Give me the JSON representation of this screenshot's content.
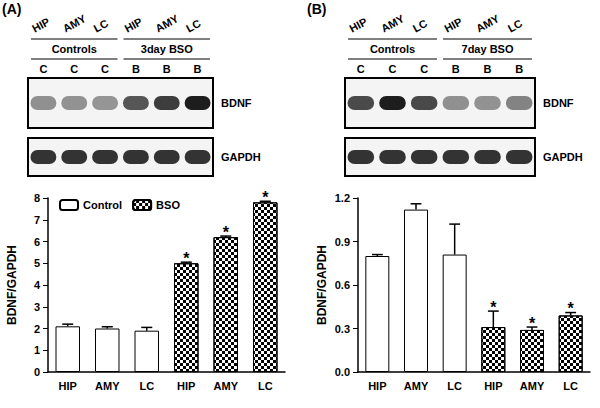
{
  "chart_data": [
    {
      "type": "bar",
      "panel": "(A)",
      "categories": [
        "HIP",
        "AMY",
        "LC",
        "HIP",
        "AMY",
        "LC"
      ],
      "y_label": "BDNF/GAPDH",
      "ylim": [
        0,
        8
      ],
      "yticks": [
        0,
        1,
        2,
        3,
        4,
        5,
        6,
        7,
        8
      ],
      "grid": false,
      "legend": "top-left",
      "series": [
        {
          "name": "Control",
          "color": "#ffffff",
          "values": [
            2.1,
            2.0,
            1.9,
            null,
            null,
            null
          ],
          "errors": [
            0.1,
            0.08,
            0.15,
            null,
            null,
            null
          ]
        },
        {
          "name": "BSO",
          "color": "#000000",
          "marker": "checkered",
          "values": [
            null,
            null,
            null,
            5.0,
            6.2,
            7.8
          ],
          "errors": [
            null,
            null,
            null,
            0.05,
            0.05,
            0.05
          ],
          "annotation": "*"
        }
      ],
      "blot": {
        "regions": [
          "HIP",
          "AMY",
          "LC",
          "HIP",
          "AMY",
          "LC"
        ],
        "groups": [
          "Controls",
          "3day BSO"
        ],
        "lanes": [
          "C",
          "C",
          "C",
          "B",
          "B",
          "B"
        ],
        "bands": [
          "BDNF",
          "GAPDH"
        ]
      }
    },
    {
      "type": "bar",
      "panel": "(B)",
      "categories": [
        "HIP",
        "AMY",
        "LC",
        "HIP",
        "AMY",
        "LC"
      ],
      "y_label": "BDNF/GAPDH",
      "ylim": [
        0,
        1.2
      ],
      "yticks": [
        {
          "value": 0,
          "label": "0.0"
        },
        0.3,
        0.6,
        0.9,
        1.2
      ],
      "grid": false,
      "series": [
        {
          "color": "#ffffff",
          "values": [
            0.8,
            1.12,
            0.81,
            null,
            null,
            null
          ],
          "errors": [
            0.01,
            0.04,
            0.21,
            null,
            null,
            null
          ]
        },
        {
          "color": "#000000",
          "marker": "checkered",
          "values": [
            null,
            null,
            null,
            0.31,
            0.29,
            0.39
          ],
          "errors": [
            null,
            null,
            null,
            0.11,
            0.02,
            0.02
          ],
          "annotation": "*"
        }
      ],
      "blot": {
        "regions": [
          "HIP",
          "AMY",
          "LC",
          "HIP",
          "AMY",
          "LC"
        ],
        "groups": [
          "Controls",
          "7day BSO"
        ],
        "lanes": [
          "C",
          "C",
          "C",
          "B",
          "B",
          "B"
        ],
        "bands": [
          "BDNF",
          "GAPDH"
        ]
      }
    }
  ]
}
